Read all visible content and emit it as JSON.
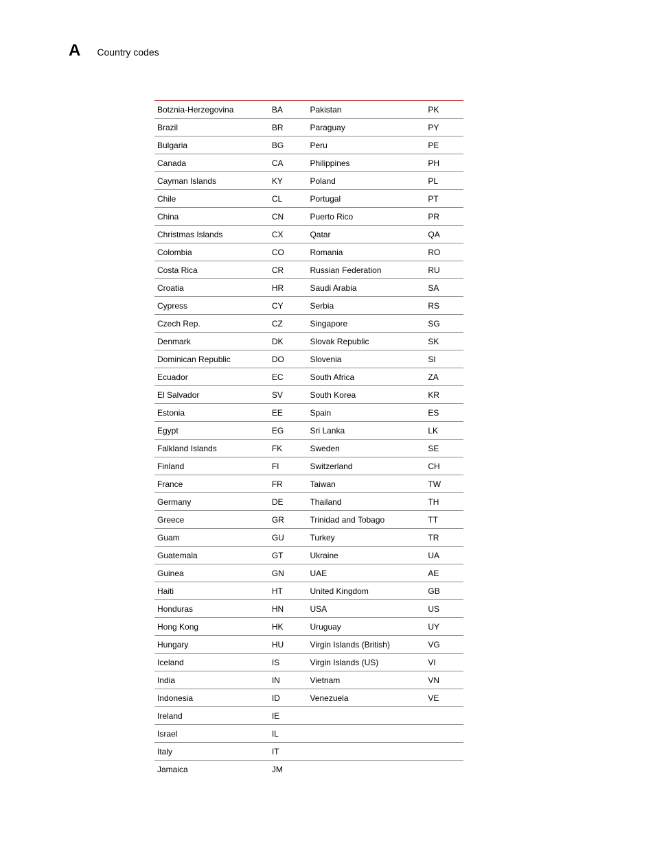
{
  "header": {
    "letter": "A",
    "title": "Country codes"
  },
  "table": {
    "type": "table",
    "columns": [
      "country_left",
      "code_left",
      "country_right",
      "code_right"
    ],
    "top_rule_color": "#cc4444",
    "row_border_color": "#888888",
    "background_color": "#ffffff",
    "text_color": "#000000",
    "font_size": 12,
    "rows": [
      [
        "Botznia-Herzegovina",
        "BA",
        "Pakistan",
        "PK"
      ],
      [
        "Brazil",
        "BR",
        "Paraguay",
        "PY"
      ],
      [
        "Bulgaria",
        "BG",
        "Peru",
        "PE"
      ],
      [
        "Canada",
        "CA",
        "Philippines",
        "PH"
      ],
      [
        "Cayman Islands",
        "KY",
        "Poland",
        "PL"
      ],
      [
        "Chile",
        "CL",
        "Portugal",
        "PT"
      ],
      [
        "China",
        "CN",
        "Puerto Rico",
        "PR"
      ],
      [
        "Christmas Islands",
        "CX",
        "Qatar",
        "QA"
      ],
      [
        "Colombia",
        "CO",
        "Romania",
        "RO"
      ],
      [
        "Costa Rica",
        "CR",
        "Russian Federation",
        "RU"
      ],
      [
        "Croatia",
        "HR",
        "Saudi Arabia",
        "SA"
      ],
      [
        "Cypress",
        "CY",
        "Serbia",
        "RS"
      ],
      [
        "Czech Rep.",
        "CZ",
        "Singapore",
        "SG"
      ],
      [
        "Denmark",
        "DK",
        "Slovak Republic",
        "SK"
      ],
      [
        "Dominican Republic",
        "DO",
        "Slovenia",
        "SI"
      ],
      [
        "Ecuador",
        "EC",
        "South Africa",
        "ZA"
      ],
      [
        "El Salvador",
        "SV",
        "South Korea",
        "KR"
      ],
      [
        "Estonia",
        "EE",
        "Spain",
        "ES"
      ],
      [
        "Egypt",
        "EG",
        "Sri Lanka",
        "LK"
      ],
      [
        "Falkland Islands",
        "FK",
        "Sweden",
        "SE"
      ],
      [
        "Finland",
        "FI",
        "Switzerland",
        "CH"
      ],
      [
        "France",
        "FR",
        "Taiwan",
        "TW"
      ],
      [
        "Germany",
        "DE",
        "Thailand",
        "TH"
      ],
      [
        "Greece",
        "GR",
        "Trinidad and Tobago",
        "TT"
      ],
      [
        "Guam",
        "GU",
        "Turkey",
        "TR"
      ],
      [
        "Guatemala",
        "GT",
        "Ukraine",
        "UA"
      ],
      [
        "Guinea",
        "GN",
        "UAE",
        "AE"
      ],
      [
        "Haiti",
        "HT",
        "United Kingdom",
        "GB"
      ],
      [
        "Honduras",
        "HN",
        "USA",
        "US"
      ],
      [
        "Hong Kong",
        "HK",
        "Uruguay",
        "UY"
      ],
      [
        "Hungary",
        "HU",
        "Virgin Islands (British)",
        "VG"
      ],
      [
        "Iceland",
        "IS",
        "Virgin Islands (US)",
        "VI"
      ],
      [
        "India",
        "IN",
        "Vietnam",
        "VN"
      ],
      [
        "Indonesia",
        "ID",
        "Venezuela",
        "VE"
      ],
      [
        "Ireland",
        "IE",
        "",
        ""
      ],
      [
        "Israel",
        "IL",
        "",
        ""
      ],
      [
        "Italy",
        "IT",
        "",
        ""
      ],
      [
        "Jamaica",
        "JM",
        "",
        ""
      ]
    ]
  }
}
